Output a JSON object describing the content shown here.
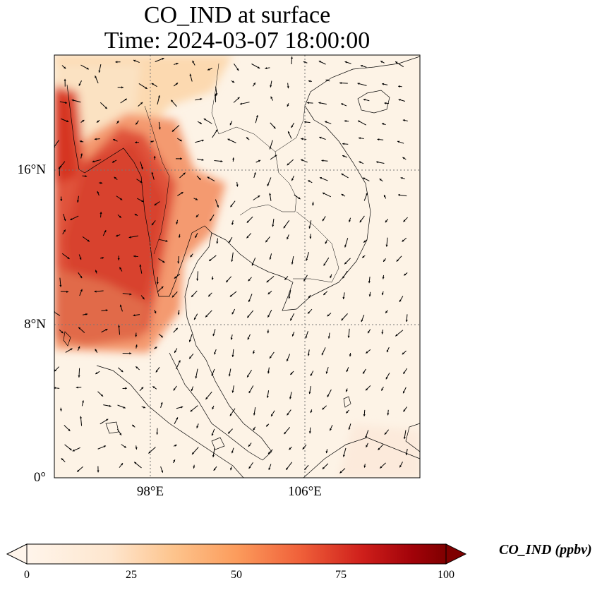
{
  "title": {
    "line1": "CO_IND at surface",
    "line2": "Time: 2024-03-07 18:00:00"
  },
  "map": {
    "lat_labels": [
      "16°N",
      "8°N",
      "0°"
    ],
    "lon_labels": [
      "98°E",
      "106°E"
    ],
    "lat_range": [
      0,
      22
    ],
    "lon_range": [
      93,
      112
    ]
  },
  "colorbar": {
    "label": "CO_IND (ppbv)",
    "ticks": [
      "0",
      "25",
      "50",
      "75",
      "100"
    ],
    "range": [
      0,
      100
    ],
    "colormap": [
      "#fff5eb",
      "#fdd0a2",
      "#fdae6b",
      "#f16913",
      "#d94801",
      "#a50f15",
      "#67000d"
    ]
  },
  "colors": {
    "background_field": "#fdf3e6",
    "high_concentration": "#d63a22",
    "coastline": "#000000"
  }
}
